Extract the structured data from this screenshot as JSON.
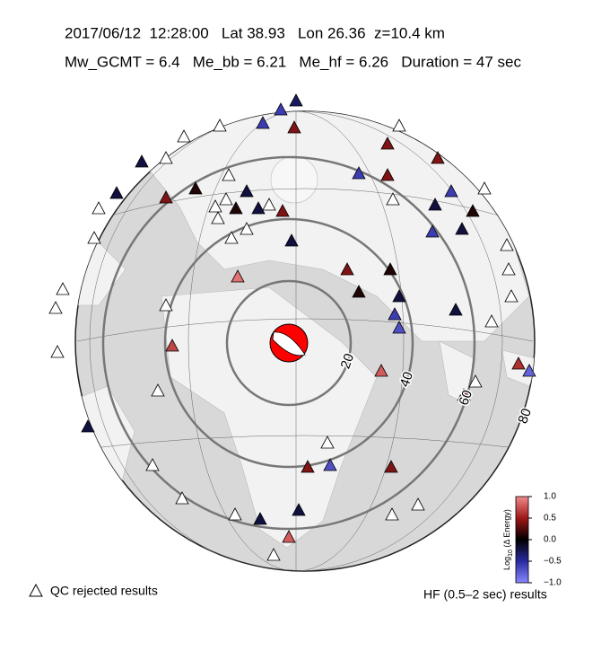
{
  "header": {
    "line1": "2017/06/12  12:28:00   Lat 38.93   Lon 26.36  z=10.4 km",
    "line2": "Mw_GCMT = 6.4   Me_bb = 6.21   Me_hf = 6.26   Duration = 47 sec"
  },
  "distance_rings": [
    20,
    40,
    60,
    80
  ],
  "colorbar": {
    "label_prefix": "Log",
    "label_sub": "10",
    "label_suffix": "(Δ Energy)",
    "clim": [
      -1,
      1
    ],
    "colors": [
      "#8888ff",
      "#2a2aa0",
      "#000000",
      "#a01818",
      "#f08a8a"
    ],
    "ticks": [
      {
        "value": 1,
        "label": "1.0"
      },
      {
        "value": 0.5,
        "label": "0.5"
      },
      {
        "value": 0,
        "label": "0.0"
      },
      {
        "value": -0.5,
        "label": "−0.5"
      },
      {
        "value": -1,
        "label": "−1.0"
      }
    ]
  },
  "stations": {
    "values": [
      -0.3,
      -0.6,
      -0.6,
      0.4,
      null,
      null,
      -0.2,
      null,
      -0.2,
      0.4,
      0.1,
      null,
      -0.2,
      null,
      null,
      0.1,
      -0.2,
      null,
      0.4,
      null,
      null,
      null,
      -0.2,
      null,
      null,
      null,
      null,
      null,
      0.4,
      null,
      0.4,
      0.4,
      -0.6,
      null,
      -0.2,
      -0.6,
      0.1,
      -0.2,
      -0.6,
      null,
      null,
      null,
      null,
      0.1,
      0.4,
      0.1,
      -0.2,
      -0.6,
      -0.7,
      -0.2,
      null,
      0.6,
      -0.8,
      0.5,
      null,
      0.9,
      null,
      0.7,
      null,
      0.8,
      null,
      0.4,
      -0.7,
      0.4,
      null,
      -0.2,
      null,
      null,
      -0.2,
      -0.2,
      0.8,
      null,
      null,
      null
    ]
  },
  "legend": {
    "rejected": "QC rejected results",
    "results": "HF (0.5–2 sec) results"
  }
}
